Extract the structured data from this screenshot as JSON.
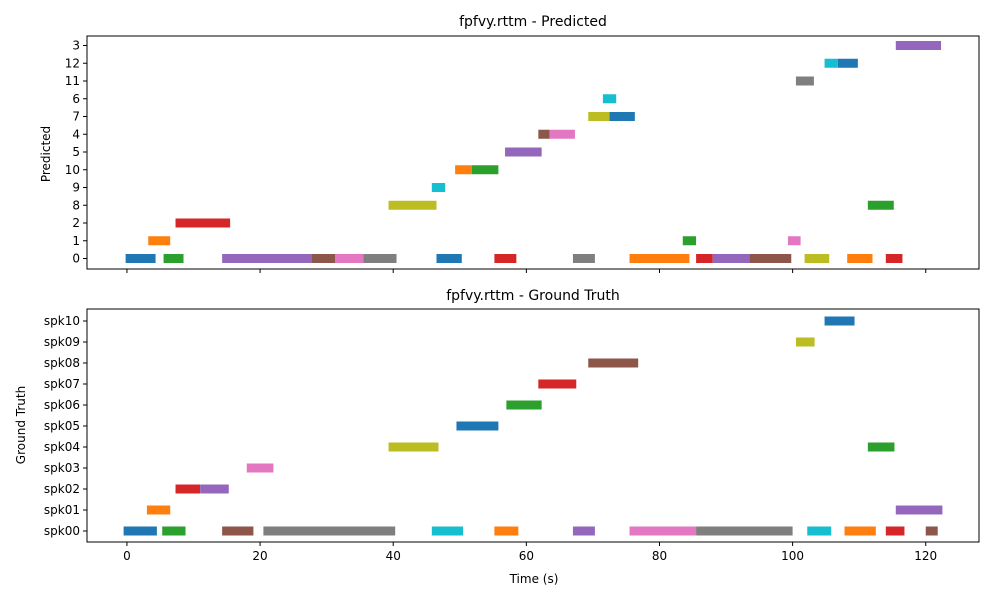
{
  "colors": [
    "#1f77b4",
    "#ff7f0e",
    "#2ca02c",
    "#d62728",
    "#9467bd",
    "#8c564b",
    "#e377c2",
    "#7f7f7f",
    "#bcbd22",
    "#17becf"
  ],
  "chart_data": [
    {
      "type": "timeline",
      "title": "fpfvy.rttm - Predicted",
      "ylabel": "Predicted",
      "xlabel": "",
      "xlim": [
        -6,
        128
      ],
      "xticks": [
        0,
        20,
        40,
        60,
        80,
        100,
        120
      ],
      "show_xtick_labels": false,
      "grid": false,
      "rows": [
        "0",
        "1",
        "2",
        "8",
        "9",
        "10",
        "5",
        "4",
        "7",
        "6",
        "11",
        "12",
        "3"
      ],
      "segments": [
        {
          "row": "0",
          "start": -0.2,
          "end": 4.3,
          "color": 0
        },
        {
          "row": "0",
          "start": 5.5,
          "end": 8.5,
          "color": 2
        },
        {
          "row": "0",
          "start": 14.3,
          "end": 27.8,
          "color": 4
        },
        {
          "row": "0",
          "start": 27.8,
          "end": 31.3,
          "color": 5
        },
        {
          "row": "0",
          "start": 31.3,
          "end": 35.5,
          "color": 6
        },
        {
          "row": "0",
          "start": 35.5,
          "end": 40.5,
          "color": 7
        },
        {
          "row": "0",
          "start": 46.5,
          "end": 50.3,
          "color": 0
        },
        {
          "row": "0",
          "start": 55.2,
          "end": 58.5,
          "color": 3
        },
        {
          "row": "0",
          "start": 67.0,
          "end": 70.3,
          "color": 7
        },
        {
          "row": "0",
          "start": 75.5,
          "end": 84.5,
          "color": 1
        },
        {
          "row": "0",
          "start": 85.5,
          "end": 88.0,
          "color": 3
        },
        {
          "row": "0",
          "start": 88.0,
          "end": 93.5,
          "color": 4
        },
        {
          "row": "0",
          "start": 93.5,
          "end": 99.8,
          "color": 5
        },
        {
          "row": "0",
          "start": 101.8,
          "end": 105.5,
          "color": 8
        },
        {
          "row": "0",
          "start": 108.2,
          "end": 112.0,
          "color": 1
        },
        {
          "row": "0",
          "start": 114.0,
          "end": 116.5,
          "color": 3
        },
        {
          "row": "1",
          "start": 3.2,
          "end": 6.5,
          "color": 1
        },
        {
          "row": "1",
          "start": 83.5,
          "end": 85.5,
          "color": 2
        },
        {
          "row": "1",
          "start": 99.3,
          "end": 101.2,
          "color": 6
        },
        {
          "row": "2",
          "start": 7.3,
          "end": 15.5,
          "color": 3
        },
        {
          "row": "8",
          "start": 39.3,
          "end": 46.5,
          "color": 8
        },
        {
          "row": "8",
          "start": 111.3,
          "end": 115.2,
          "color": 2
        },
        {
          "row": "9",
          "start": 45.8,
          "end": 47.8,
          "color": 9
        },
        {
          "row": "10",
          "start": 49.3,
          "end": 51.8,
          "color": 1
        },
        {
          "row": "10",
          "start": 51.8,
          "end": 55.8,
          "color": 2
        },
        {
          "row": "5",
          "start": 56.8,
          "end": 62.3,
          "color": 4
        },
        {
          "row": "4",
          "start": 61.8,
          "end": 63.5,
          "color": 5
        },
        {
          "row": "4",
          "start": 63.5,
          "end": 67.3,
          "color": 6
        },
        {
          "row": "7",
          "start": 69.3,
          "end": 72.5,
          "color": 8
        },
        {
          "row": "7",
          "start": 72.5,
          "end": 76.3,
          "color": 0
        },
        {
          "row": "6",
          "start": 71.5,
          "end": 73.5,
          "color": 9
        },
        {
          "row": "11",
          "start": 100.5,
          "end": 103.2,
          "color": 7
        },
        {
          "row": "12",
          "start": 104.8,
          "end": 106.8,
          "color": 9
        },
        {
          "row": "12",
          "start": 106.8,
          "end": 109.8,
          "color": 0
        },
        {
          "row": "3",
          "start": 115.5,
          "end": 122.3,
          "color": 4
        }
      ]
    },
    {
      "type": "timeline",
      "title": "fpfvy.rttm - Ground Truth",
      "ylabel": "Ground Truth",
      "xlabel": "Time (s)",
      "xlim": [
        -6,
        128
      ],
      "xticks": [
        0,
        20,
        40,
        60,
        80,
        100,
        120
      ],
      "show_xtick_labels": true,
      "grid": false,
      "rows": [
        "spk00",
        "spk01",
        "spk02",
        "spk03",
        "spk04",
        "spk05",
        "spk06",
        "spk07",
        "spk08",
        "spk09",
        "spk10"
      ],
      "segments": [
        {
          "row": "spk00",
          "start": -0.5,
          "end": 4.5,
          "color": 0
        },
        {
          "row": "spk00",
          "start": 5.3,
          "end": 8.8,
          "color": 2
        },
        {
          "row": "spk00",
          "start": 14.3,
          "end": 19.0,
          "color": 5
        },
        {
          "row": "spk00",
          "start": 20.5,
          "end": 40.3,
          "color": 7
        },
        {
          "row": "spk00",
          "start": 45.8,
          "end": 50.5,
          "color": 9
        },
        {
          "row": "spk00",
          "start": 55.2,
          "end": 58.8,
          "color": 1
        },
        {
          "row": "spk00",
          "start": 67.0,
          "end": 70.3,
          "color": 4
        },
        {
          "row": "spk00",
          "start": 75.5,
          "end": 85.5,
          "color": 6
        },
        {
          "row": "spk00",
          "start": 85.5,
          "end": 100.0,
          "color": 7
        },
        {
          "row": "spk00",
          "start": 102.2,
          "end": 105.8,
          "color": 9
        },
        {
          "row": "spk00",
          "start": 107.8,
          "end": 112.5,
          "color": 1
        },
        {
          "row": "spk00",
          "start": 114.0,
          "end": 116.8,
          "color": 3
        },
        {
          "row": "spk00",
          "start": 120.0,
          "end": 121.8,
          "color": 5
        },
        {
          "row": "spk01",
          "start": 3.0,
          "end": 6.5,
          "color": 1
        },
        {
          "row": "spk01",
          "start": 115.5,
          "end": 122.5,
          "color": 4
        },
        {
          "row": "spk02",
          "start": 7.3,
          "end": 11.0,
          "color": 3
        },
        {
          "row": "spk02",
          "start": 11.0,
          "end": 15.3,
          "color": 4
        },
        {
          "row": "spk03",
          "start": 18.0,
          "end": 22.0,
          "color": 6
        },
        {
          "row": "spk04",
          "start": 39.3,
          "end": 46.8,
          "color": 8
        },
        {
          "row": "spk04",
          "start": 111.3,
          "end": 115.3,
          "color": 2
        },
        {
          "row": "spk05",
          "start": 49.5,
          "end": 55.8,
          "color": 0
        },
        {
          "row": "spk06",
          "start": 57.0,
          "end": 62.3,
          "color": 2
        },
        {
          "row": "spk07",
          "start": 61.8,
          "end": 67.5,
          "color": 3
        },
        {
          "row": "spk08",
          "start": 69.3,
          "end": 76.8,
          "color": 5
        },
        {
          "row": "spk09",
          "start": 100.5,
          "end": 103.3,
          "color": 8
        },
        {
          "row": "spk10",
          "start": 104.8,
          "end": 109.3,
          "color": 0
        }
      ]
    }
  ]
}
